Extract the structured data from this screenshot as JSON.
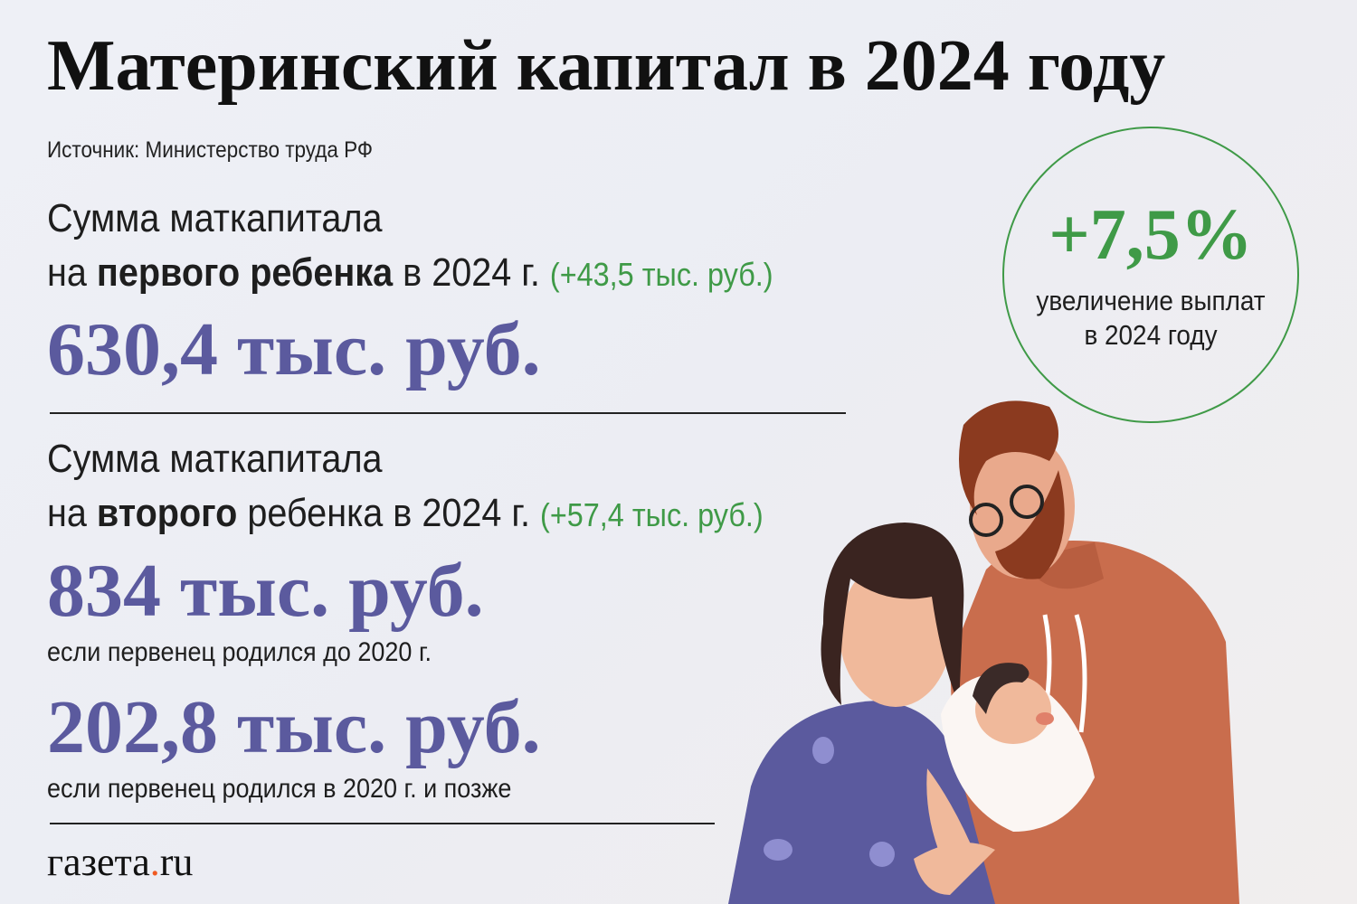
{
  "title": "Материнский капитал в 2024 году",
  "source": "Источник: Министерство труда РФ",
  "first_child": {
    "line1": "Сумма маткапитала",
    "line2_pre": "на ",
    "line2_bold": "первого ребенка",
    "line2_post": " в 2024 г.",
    "delta": "(+43,5 тыс. руб.)",
    "amount": "630,4 тыс. руб."
  },
  "second_child": {
    "line1": "Сумма маткапитала",
    "line2_pre": "на ",
    "line2_bold": "второго",
    "line2_post": " ребенка в 2024 г.",
    "delta": "(+57,4 тыс. руб.)",
    "amount_1": "834 тыс. руб.",
    "note_1": "если первенец родился до 2020 г.",
    "amount_2": "202,8 тыс. руб.",
    "note_2": "если первенец родился в 2020 г. и позже"
  },
  "badge": {
    "value": "+7,5%",
    "line1": "увеличение выплат",
    "line2": "в 2024 году"
  },
  "logo": {
    "main": "газета",
    "dot": ".",
    "tld": "ru"
  },
  "colors": {
    "accent_purple": "#5b5a9e",
    "accent_green": "#3f9a47",
    "logo_dot": "#f05a22"
  }
}
